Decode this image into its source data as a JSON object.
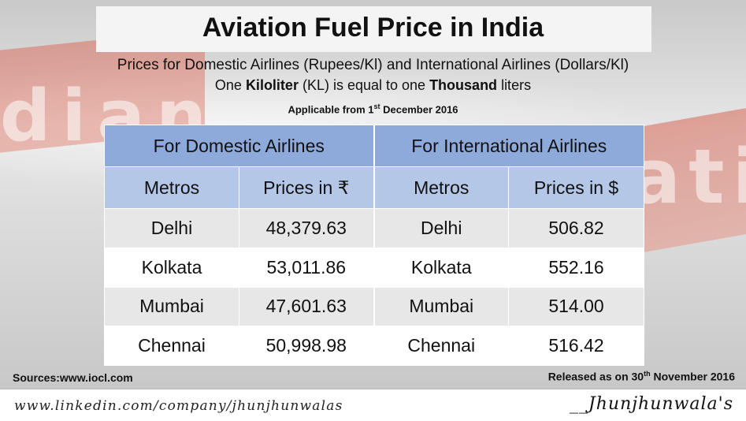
{
  "title": "Aviation Fuel Price in India",
  "subtitle": "Prices for Domestic Airlines (Rupees/Kl) and International Airlines (Dollars/Kl)",
  "subtitle2": {
    "part1": "One ",
    "bold1": "Kiloliter",
    "part2": " (KL) is equal to one ",
    "bold2": "Thousand",
    "part3": " liters"
  },
  "applicable": {
    "prefix": "Applicable from 1",
    "sup": "st",
    "suffix": " December 2016"
  },
  "table": {
    "group_headers": [
      "For Domestic Airlines",
      "For International Airlines"
    ],
    "column_headers": [
      "Metros",
      "Prices in ₹",
      "Metros",
      "Prices in $"
    ],
    "rows": [
      [
        "Delhi",
        "48,379.63",
        "Delhi",
        "506.82"
      ],
      [
        "Kolkata",
        "53,011.86",
        "Kolkata",
        "552.16"
      ],
      [
        "Mumbai",
        "47,601.63",
        "Mumbai",
        "514.00"
      ],
      [
        "Chennai",
        "50,998.98",
        "Chennai",
        "516.42"
      ]
    ]
  },
  "sources": "Sources:www.iocl.com",
  "released": {
    "prefix": "Released as on 30",
    "sup": "th",
    "suffix": " November 2016"
  },
  "footer": {
    "url": "www.linkedin.com/company/jhunjhunwalas",
    "brand": "__Jhunjhunwala's"
  },
  "background_words": [
    "dian",
    "atio"
  ],
  "colors": {
    "header_dark": "#8eaadb",
    "header_light": "#b4c7e7",
    "row_alt": "#e7e7e7"
  }
}
